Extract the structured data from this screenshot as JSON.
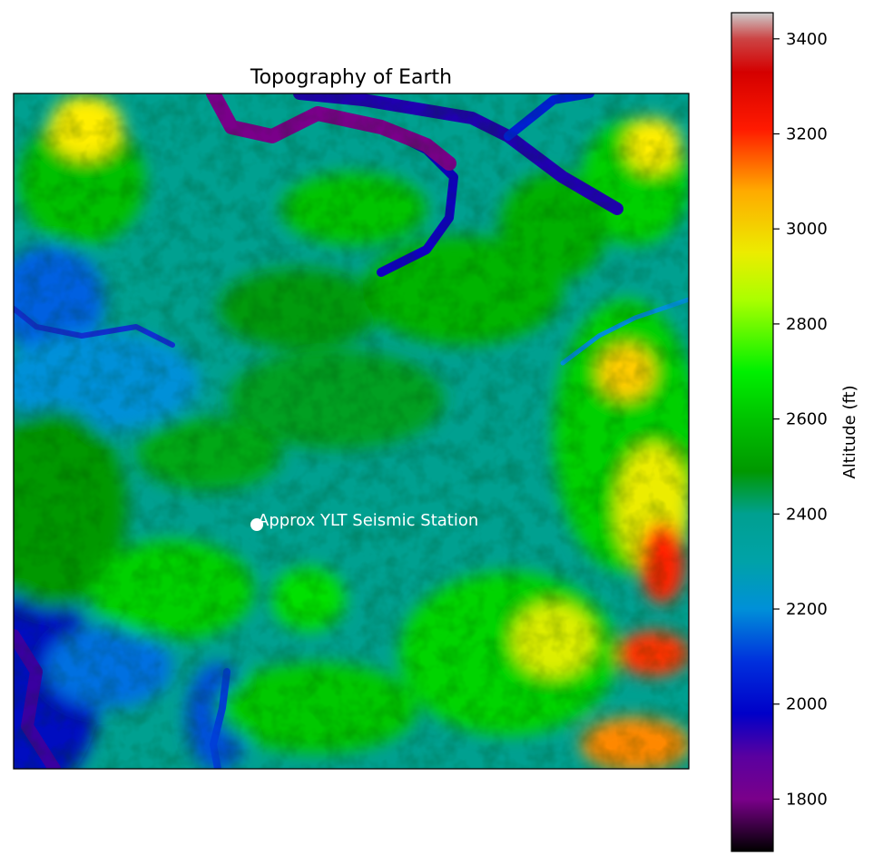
{
  "chart_data": {
    "type": "heatmap",
    "title": "Topography of Earth",
    "colorbar": {
      "label": "Altitude (ft)",
      "range": [
        1690,
        3455
      ],
      "ticks": [
        1800,
        2000,
        2200,
        2400,
        2600,
        2800,
        3000,
        3200,
        3400
      ],
      "colormap": "nipy_spectral",
      "stops": [
        {
          "value": 1690,
          "color": "#000000"
        },
        {
          "value": 1800,
          "color": "#7a008a"
        },
        {
          "value": 1890,
          "color": "#5a00a0"
        },
        {
          "value": 1980,
          "color": "#0000c8"
        },
        {
          "value": 2090,
          "color": "#0030dd"
        },
        {
          "value": 2200,
          "color": "#0090d8"
        },
        {
          "value": 2300,
          "color": "#00a2a8"
        },
        {
          "value": 2400,
          "color": "#00a090"
        },
        {
          "value": 2490,
          "color": "#009800"
        },
        {
          "value": 2600,
          "color": "#00c200"
        },
        {
          "value": 2700,
          "color": "#00f000"
        },
        {
          "value": 2850,
          "color": "#aaff00"
        },
        {
          "value": 2950,
          "color": "#ecec00"
        },
        {
          "value": 3080,
          "color": "#ffaa00"
        },
        {
          "value": 3210,
          "color": "#ff1a00"
        },
        {
          "value": 3330,
          "color": "#d40000"
        },
        {
          "value": 3400,
          "color": "#cc4444"
        },
        {
          "value": 3455,
          "color": "#cccccc"
        }
      ]
    },
    "annotations": [
      {
        "text": "Approx YLT Seismic Station",
        "marker": "circle",
        "marker_color": "#ffffff"
      }
    ],
    "x_ticks": [],
    "y_ticks": [],
    "grid": false
  }
}
